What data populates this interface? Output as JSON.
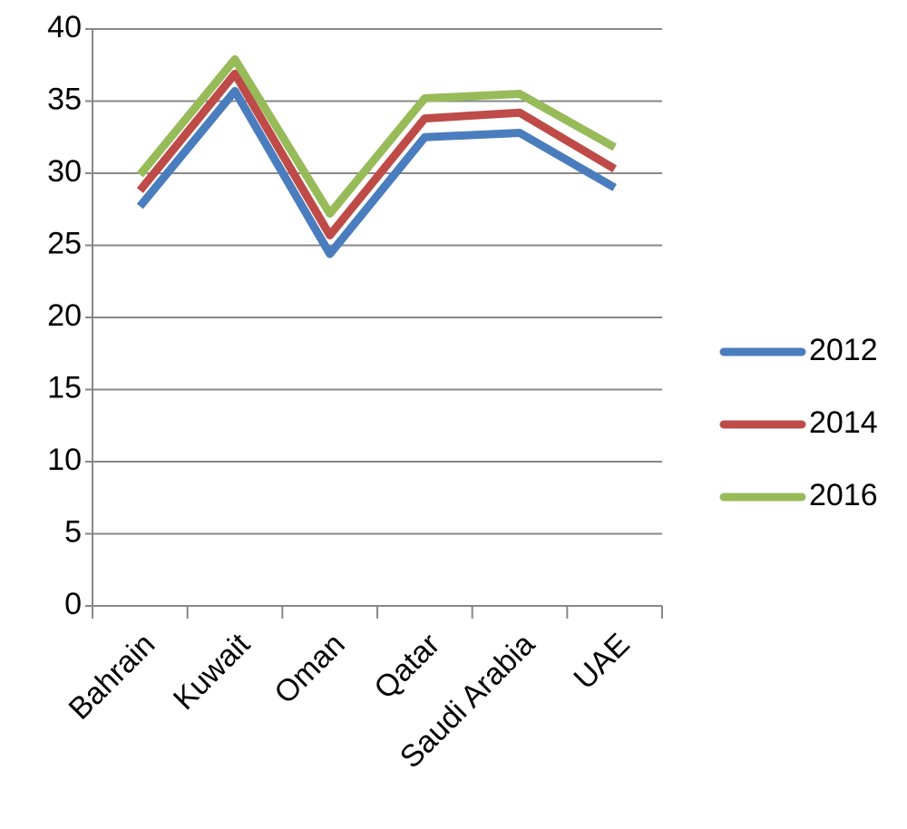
{
  "chart_data": {
    "type": "line",
    "categories": [
      "Bahrain",
      "Kuwait",
      "Oman",
      "Qatar",
      "Saudi Arabia",
      "UAE"
    ],
    "series": [
      {
        "name": "2012",
        "color": "#4a7dbe",
        "values": [
          27.7,
          35.7,
          24.4,
          32.5,
          32.8,
          29.0
        ]
      },
      {
        "name": "2014",
        "color": "#be4b48",
        "values": [
          28.8,
          36.9,
          25.7,
          33.8,
          34.2,
          30.3
        ]
      },
      {
        "name": "2016",
        "color": "#98bb59",
        "values": [
          29.9,
          37.9,
          27.2,
          35.2,
          35.5,
          31.8
        ]
      }
    ],
    "ylim": [
      0,
      40
    ],
    "yticks": [
      0,
      5,
      10,
      15,
      20,
      25,
      30,
      35,
      40
    ],
    "grid": true,
    "legend": "right"
  }
}
